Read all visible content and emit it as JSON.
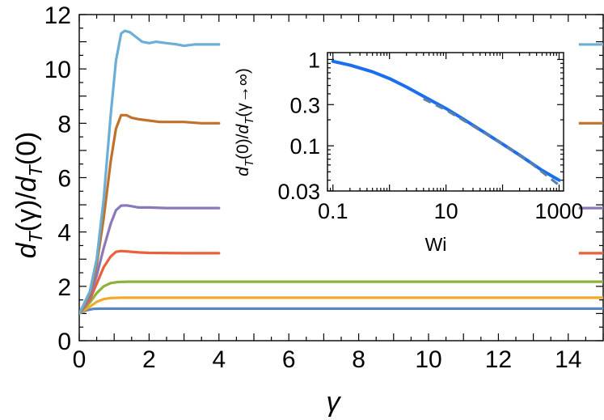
{
  "chart_data": [
    {
      "type": "line",
      "name": "main",
      "xlabel_var": "γ",
      "ylabel_parts": {
        "d": "d",
        "sub": "T",
        "mid": "(γ)/",
        "end": "(0)"
      },
      "xlim": [
        0,
        15
      ],
      "ylim": [
        0,
        12
      ],
      "xticks": [
        0,
        2,
        4,
        6,
        8,
        10,
        12,
        14
      ],
      "yticks": [
        0,
        2,
        4,
        6,
        8,
        10,
        12
      ],
      "series": [
        {
          "name": "curve-1",
          "color": "#6baed6",
          "x": [
            0,
            0.3,
            0.5,
            0.7,
            0.9,
            1.05,
            1.2,
            1.3,
            1.45,
            1.6,
            1.8,
            2.0,
            2.2,
            2.5,
            2.8,
            3.0,
            3.3,
            3.6,
            4.0
          ],
          "y": [
            1.0,
            1.8,
            3.0,
            5.2,
            8.3,
            10.3,
            11.3,
            11.4,
            11.35,
            11.2,
            11.0,
            10.95,
            11.0,
            10.95,
            10.9,
            10.85,
            10.9,
            10.9,
            10.9
          ],
          "right_marker_y": 10.9
        },
        {
          "name": "curve-2",
          "color": "#c0712a",
          "x": [
            0,
            0.3,
            0.5,
            0.7,
            0.9,
            1.05,
            1.2,
            1.35,
            1.5,
            1.7,
            2.0,
            2.3,
            2.6,
            3.0,
            3.5,
            4.0
          ],
          "y": [
            1.0,
            1.7,
            2.8,
            4.5,
            6.6,
            7.8,
            8.3,
            8.3,
            8.2,
            8.15,
            8.1,
            8.05,
            8.05,
            8.05,
            8.0,
            8.0
          ],
          "right_marker_y": 8.0
        },
        {
          "name": "curve-3",
          "color": "#8a78b8",
          "x": [
            0,
            0.3,
            0.5,
            0.7,
            0.9,
            1.05,
            1.2,
            1.35,
            1.5,
            1.7,
            2.0,
            2.5,
            3.0,
            4.0
          ],
          "y": [
            1.0,
            1.6,
            2.4,
            3.4,
            4.3,
            4.8,
            4.97,
            4.98,
            4.95,
            4.9,
            4.9,
            4.88,
            4.88,
            4.88
          ],
          "right_marker_y": 4.88
        },
        {
          "name": "curve-4",
          "color": "#e9603a",
          "x": [
            0,
            0.3,
            0.5,
            0.7,
            0.9,
            1.05,
            1.2,
            1.4,
            1.7,
            2.0,
            3.0,
            4.0
          ],
          "y": [
            1.0,
            1.5,
            2.1,
            2.7,
            3.1,
            3.27,
            3.3,
            3.28,
            3.25,
            3.23,
            3.22,
            3.22
          ],
          "right_marker_y": 3.22
        },
        {
          "name": "curve-5",
          "color": "#8cb33c",
          "x": [
            0,
            0.3,
            0.5,
            0.7,
            0.9,
            1.1,
            1.4,
            1.8,
            2.5,
            4.0,
            15.0
          ],
          "y": [
            1.0,
            1.4,
            1.75,
            2.0,
            2.12,
            2.16,
            2.17,
            2.17,
            2.17,
            2.17,
            2.17
          ],
          "right_marker_y": null
        },
        {
          "name": "curve-6",
          "color": "#f0aa2a",
          "x": [
            0,
            0.3,
            0.5,
            0.7,
            0.9,
            1.2,
            1.6,
            2.0,
            4.0,
            15.0
          ],
          "y": [
            1.0,
            1.25,
            1.43,
            1.53,
            1.57,
            1.58,
            1.58,
            1.58,
            1.58,
            1.58
          ],
          "right_marker_y": null
        },
        {
          "name": "curve-7",
          "color": "#5b86c4",
          "x": [
            0,
            0.2,
            0.4,
            0.6,
            1.0,
            2.0,
            15.0
          ],
          "y": [
            1.0,
            1.12,
            1.17,
            1.18,
            1.18,
            1.18,
            1.18
          ],
          "right_marker_y": null
        }
      ]
    },
    {
      "type": "line",
      "name": "inset",
      "xscale": "log",
      "yscale": "log",
      "xlabel": "Wi",
      "ylabel_parts": {
        "d": "d",
        "sub": "T",
        "mid": "(0)/",
        "end": "(γ→∞)"
      },
      "xlim": [
        0.08,
        1200
      ],
      "ylim": [
        0.03,
        1.2
      ],
      "xticks": [
        0.1,
        10,
        1000
      ],
      "xtick_labels": [
        "0.1",
        "10",
        "1000"
      ],
      "yticks": [
        0.03,
        0.1,
        0.3,
        1
      ],
      "ytick_labels": [
        "0.03",
        "0.1",
        "0.3",
        "1"
      ],
      "series": [
        {
          "name": "simulation",
          "color": "#1a6ff0",
          "style": "solid",
          "x": [
            0.1,
            0.2,
            0.5,
            1,
            2,
            5,
            10,
            20,
            50,
            100,
            200,
            500,
            1000
          ],
          "y": [
            0.95,
            0.86,
            0.72,
            0.6,
            0.48,
            0.345,
            0.27,
            0.205,
            0.14,
            0.105,
            0.078,
            0.052,
            0.04
          ]
        },
        {
          "name": "asymptote",
          "color": "#5e7fa8",
          "style": "dashed",
          "x": [
            4,
            10,
            30,
            100,
            300,
            1000
          ],
          "y": [
            0.35,
            0.26,
            0.17,
            0.105,
            0.065,
            0.035
          ]
        }
      ]
    }
  ]
}
